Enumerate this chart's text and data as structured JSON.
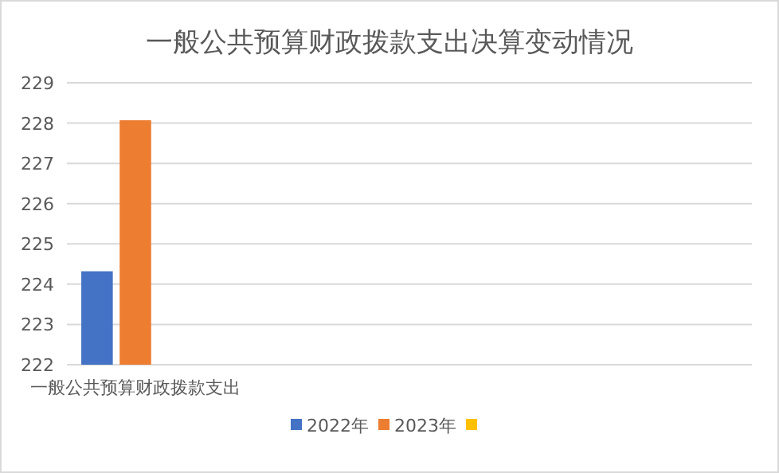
{
  "chart_data": {
    "type": "bar",
    "title": "一般公共预算财政拨款支出决算变动情况",
    "categories": [
      "一般公共预算财政拨款支出",
      null,
      null,
      null,
      null
    ],
    "series": [
      {
        "name": "2022年",
        "color": "#4472c4",
        "values": [
          224.32,
          null,
          null,
          null,
          null
        ]
      },
      {
        "name": "2023年",
        "color": "#ed7d31",
        "values": [
          228.07,
          null,
          null,
          null,
          null
        ]
      },
      {
        "color": "#ffc000",
        "values": [
          null,
          null,
          null,
          null,
          null
        ]
      }
    ],
    "ylim": [
      222,
      229
    ],
    "yticks": [
      222,
      223,
      224,
      225,
      226,
      227,
      228,
      229
    ],
    "grid": "y",
    "legend": "bottom"
  }
}
